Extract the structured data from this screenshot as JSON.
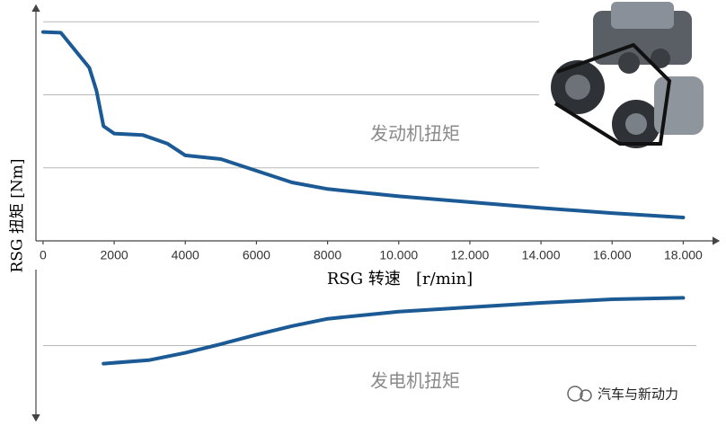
{
  "watermark": "汽车与新动力",
  "chart_data": [
    {
      "type": "line",
      "y_label": "RSG 扭矩  [Nm]",
      "x_label": "RSG 转速   [r/min]",
      "annotation": "发动机扭矩",
      "xlim": [
        -200,
        19000
      ],
      "ylim": [
        0,
        3.2
      ],
      "xticks": [
        0,
        2000,
        4000,
        6000,
        8000,
        {
          "value": 10000,
          "label": "10.000"
        },
        {
          "value": 12000,
          "label": "12.000"
        },
        {
          "value": 14000,
          "label": "14.000"
        },
        {
          "value": 16000,
          "label": "16.000"
        },
        {
          "value": 18000,
          "label": "18.000"
        }
      ],
      "gridlines": [
        1,
        2,
        3
      ],
      "series": [
        {
          "color": "#1b5a94",
          "x": [
            0,
            500,
            1000,
            1300,
            1500,
            1700,
            2000,
            2800,
            3500,
            4000,
            5000,
            6000,
            7000,
            8000,
            10000,
            12000,
            14000,
            16000,
            18000
          ],
          "values": [
            2.86,
            2.85,
            2.55,
            2.37,
            2.06,
            1.57,
            1.47,
            1.45,
            1.33,
            1.17,
            1.12,
            0.96,
            0.8,
            0.71,
            0.61,
            0.53,
            0.45,
            0.38,
            0.32
          ]
        }
      ]
    },
    {
      "type": "line",
      "annotation": "发电机扭矩",
      "xlim": [
        -200,
        19000
      ],
      "ylim": [
        -1,
        1.05
      ],
      "gridlines": [
        0
      ],
      "series": [
        {
          "color": "#1b5a94",
          "x": [
            1700,
            3000,
            4000,
            5000,
            6000,
            7000,
            8000,
            10000,
            12000,
            14000,
            16000,
            18000
          ],
          "values": [
            -0.25,
            -0.2,
            -0.1,
            0.02,
            0.15,
            0.27,
            0.37,
            0.47,
            0.53,
            0.59,
            0.64,
            0.66
          ]
        }
      ]
    }
  ]
}
